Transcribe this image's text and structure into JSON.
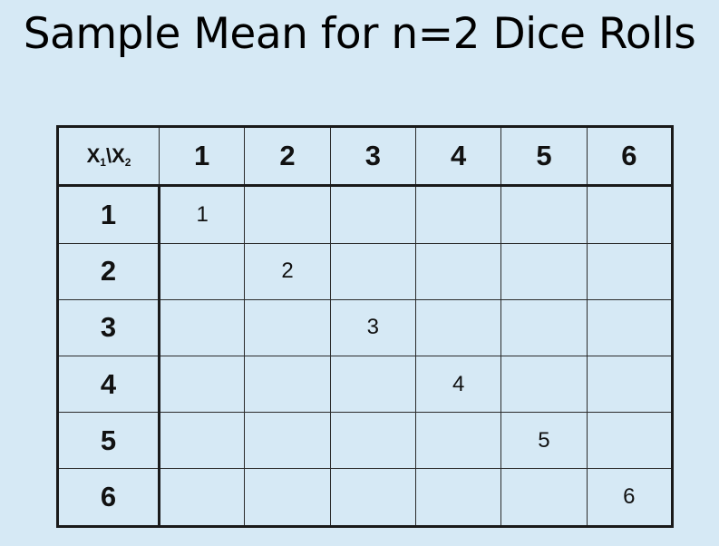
{
  "title": "Sample Mean for n=2 Dice Rolls",
  "table": {
    "corner": {
      "var1": "X",
      "sub1": "1",
      "sep": "\\",
      "var2": "X",
      "sub2": "2"
    },
    "column_headers": [
      "1",
      "2",
      "3",
      "4",
      "5",
      "6"
    ],
    "row_headers": [
      "1",
      "2",
      "3",
      "4",
      "5",
      "6"
    ],
    "cells": [
      [
        "1",
        "",
        "",
        "",
        "",
        ""
      ],
      [
        "",
        "2",
        "",
        "",
        "",
        ""
      ],
      [
        "",
        "",
        "3",
        "",
        "",
        ""
      ],
      [
        "",
        "",
        "",
        "4",
        "",
        ""
      ],
      [
        "",
        "",
        "",
        "",
        "5",
        ""
      ],
      [
        "",
        "",
        "",
        "",
        "",
        "6"
      ]
    ]
  },
  "colors": {
    "background": "#d6e9f5",
    "text": "#000000",
    "grid": "#1a1a1a"
  }
}
